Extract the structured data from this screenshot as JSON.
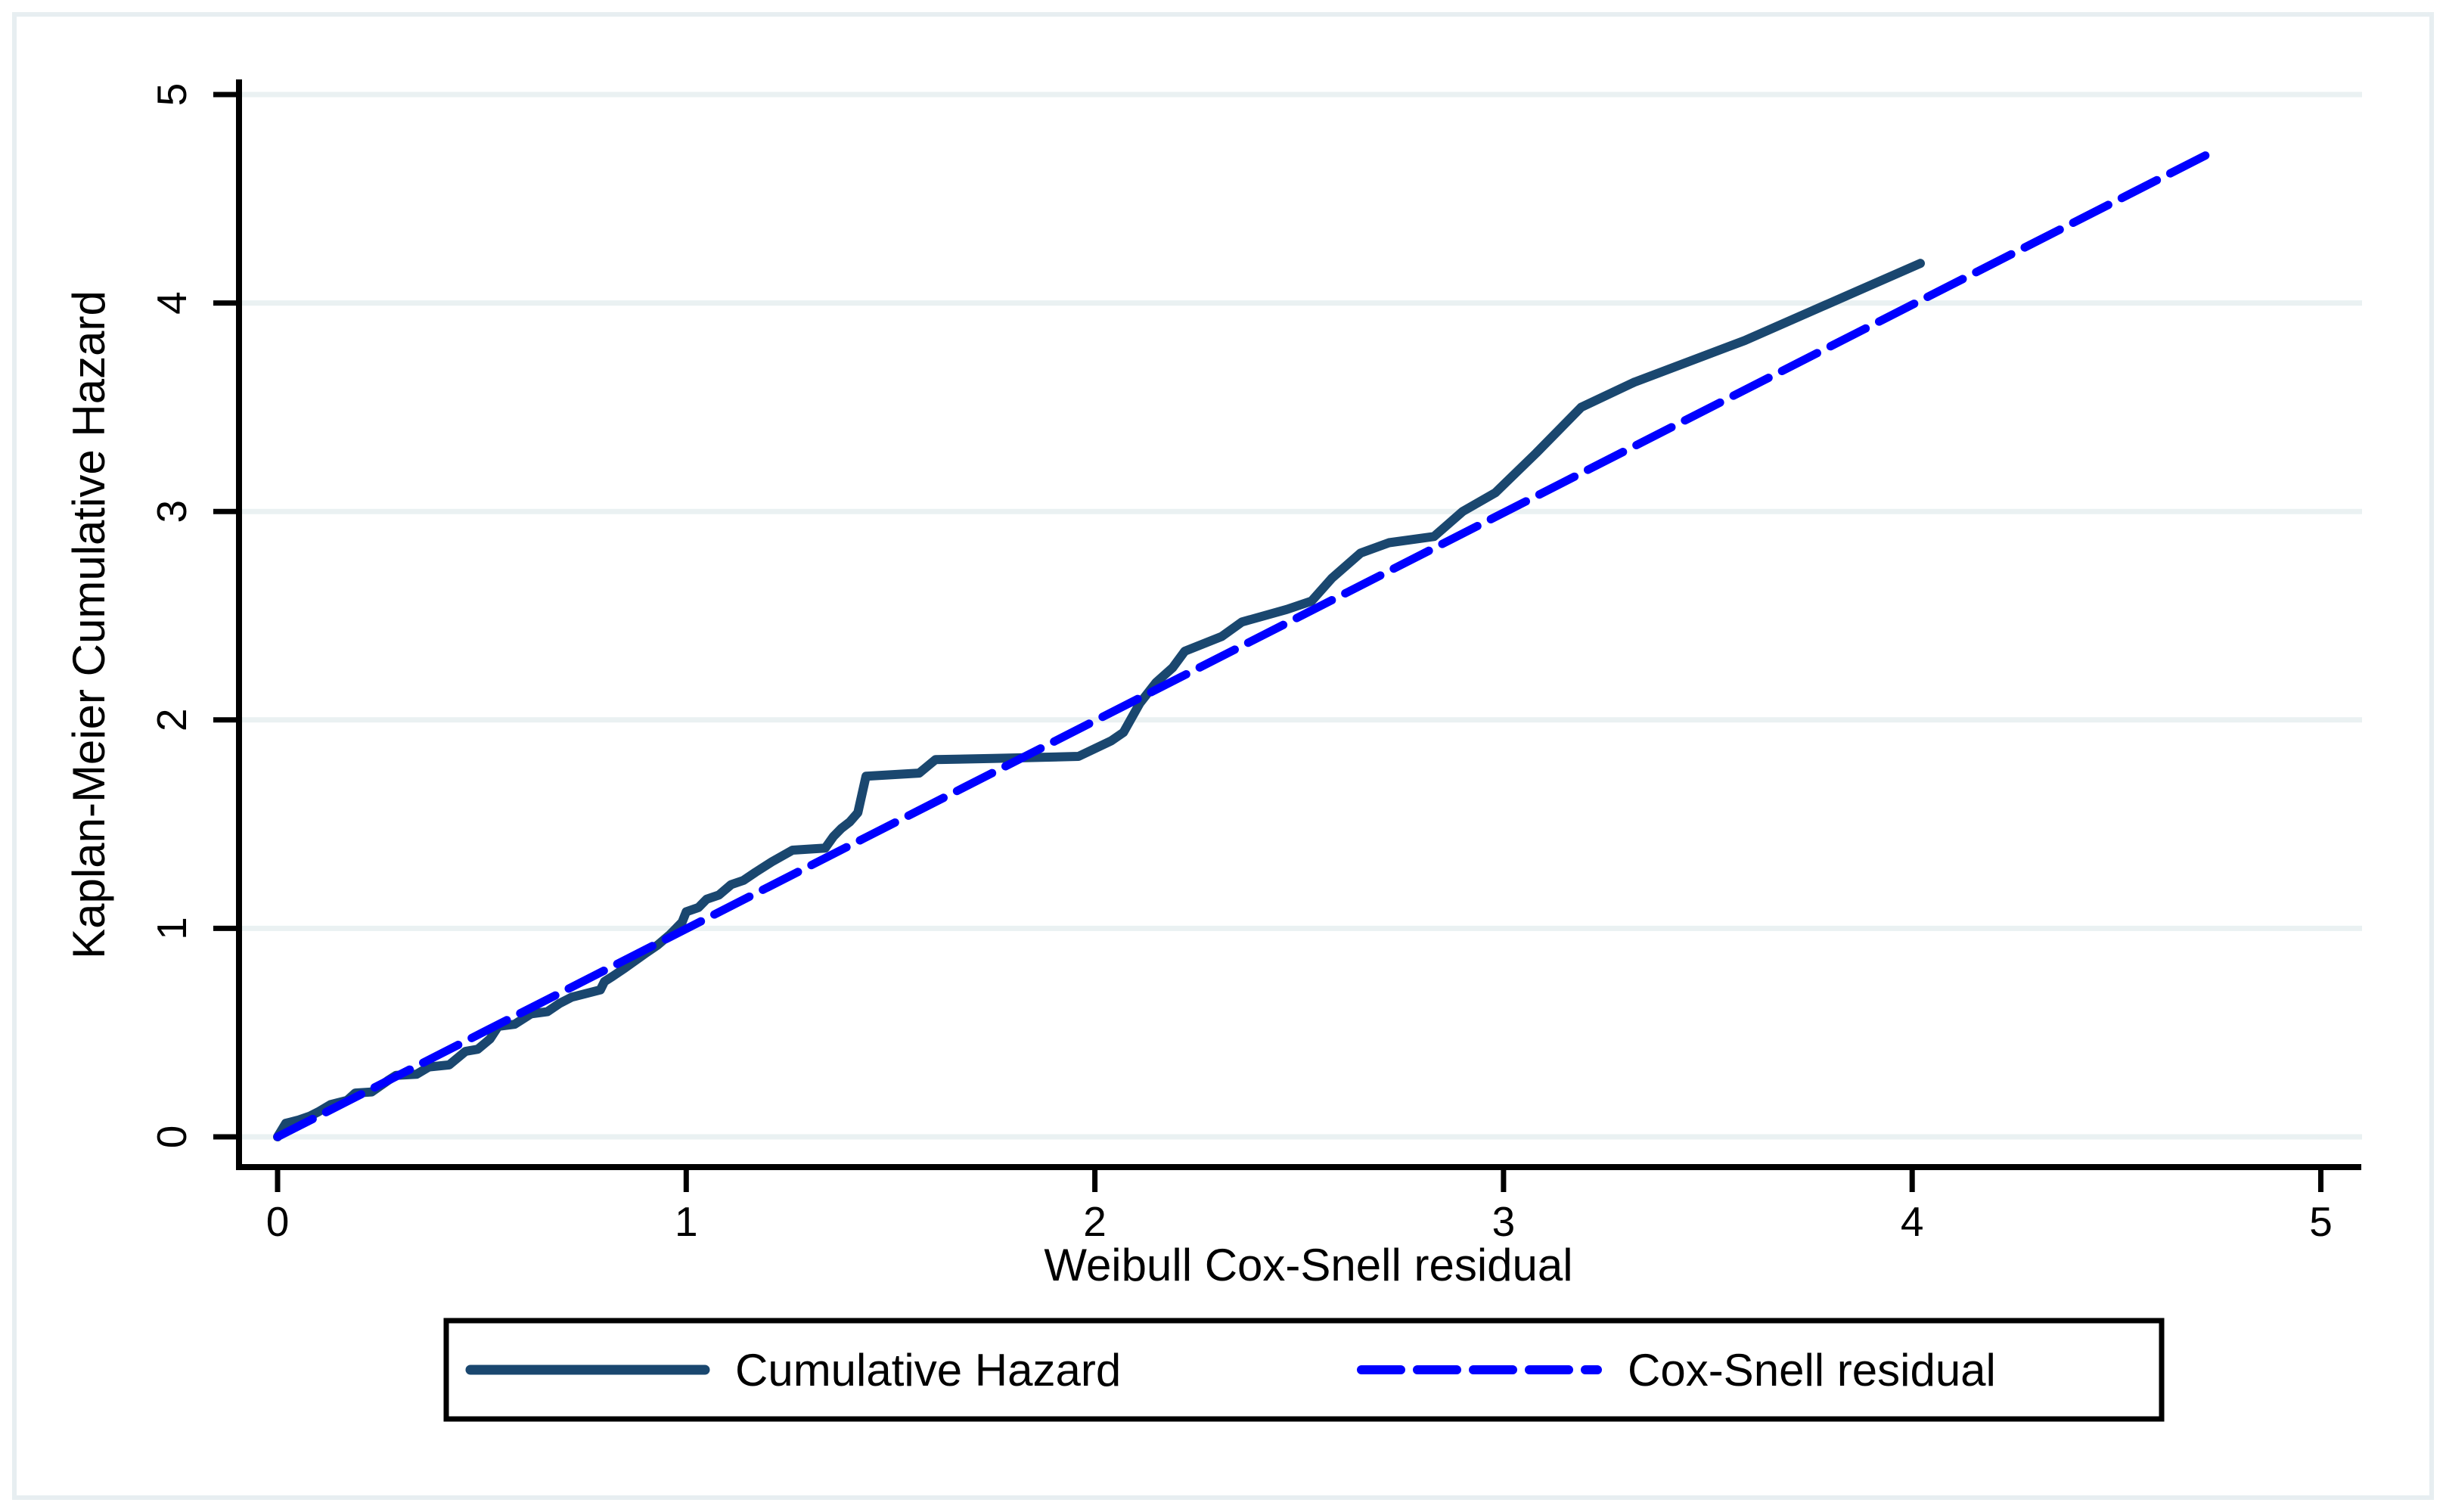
{
  "figure": {
    "background_color": "#ffffff",
    "border_color": "#e7eef1"
  },
  "chart_data": {
    "type": "line",
    "title": "",
    "xlabel": "Weibull Cox-Snell residual",
    "ylabel": "Kaplan-Meier Cumulative Hazard",
    "xlim": [
      0,
      5
    ],
    "ylim": [
      0,
      5
    ],
    "x_ticks": [
      "0",
      "1",
      "2",
      "3",
      "4",
      "5"
    ],
    "y_ticks": [
      "0",
      "1",
      "2",
      "3",
      "4",
      "5"
    ],
    "grid": "horizontal-only",
    "gridline_color": "#eaf1f2",
    "legend_position": "bottom-center",
    "series": [
      {
        "name": "Cumulative Hazard",
        "style": "solid",
        "color": "#1a476f",
        "points": [
          [
            0.0,
            0.0
          ],
          [
            0.02,
            0.065
          ],
          [
            0.05,
            0.08
          ],
          [
            0.08,
            0.1
          ],
          [
            0.1,
            0.12
          ],
          [
            0.13,
            0.155
          ],
          [
            0.17,
            0.175
          ],
          [
            0.19,
            0.21
          ],
          [
            0.23,
            0.215
          ],
          [
            0.27,
            0.27
          ],
          [
            0.29,
            0.295
          ],
          [
            0.34,
            0.3
          ],
          [
            0.37,
            0.335
          ],
          [
            0.42,
            0.345
          ],
          [
            0.46,
            0.41
          ],
          [
            0.49,
            0.42
          ],
          [
            0.52,
            0.47
          ],
          [
            0.54,
            0.53
          ],
          [
            0.58,
            0.54
          ],
          [
            0.62,
            0.59
          ],
          [
            0.66,
            0.6
          ],
          [
            0.69,
            0.64
          ],
          [
            0.72,
            0.67
          ],
          [
            0.79,
            0.705
          ],
          [
            0.8,
            0.745
          ],
          [
            0.82,
            0.77
          ],
          [
            0.85,
            0.81
          ],
          [
            0.9,
            0.88
          ],
          [
            0.93,
            0.92
          ],
          [
            0.96,
            0.97
          ],
          [
            0.99,
            1.03
          ],
          [
            1.0,
            1.08
          ],
          [
            1.03,
            1.1
          ],
          [
            1.05,
            1.14
          ],
          [
            1.08,
            1.16
          ],
          [
            1.11,
            1.21
          ],
          [
            1.14,
            1.23
          ],
          [
            1.17,
            1.27
          ],
          [
            1.21,
            1.32
          ],
          [
            1.26,
            1.375
          ],
          [
            1.34,
            1.385
          ],
          [
            1.36,
            1.44
          ],
          [
            1.38,
            1.48
          ],
          [
            1.4,
            1.51
          ],
          [
            1.42,
            1.555
          ],
          [
            1.44,
            1.73
          ],
          [
            1.57,
            1.745
          ],
          [
            1.61,
            1.81
          ],
          [
            1.75,
            1.815
          ],
          [
            1.96,
            1.825
          ],
          [
            2.04,
            1.9
          ],
          [
            2.07,
            1.94
          ],
          [
            2.11,
            2.08
          ],
          [
            2.15,
            2.18
          ],
          [
            2.19,
            2.25
          ],
          [
            2.22,
            2.33
          ],
          [
            2.31,
            2.4
          ],
          [
            2.36,
            2.47
          ],
          [
            2.47,
            2.53
          ],
          [
            2.53,
            2.57
          ],
          [
            2.58,
            2.68
          ],
          [
            2.65,
            2.8
          ],
          [
            2.72,
            2.85
          ],
          [
            2.83,
            2.88
          ],
          [
            2.9,
            3.0
          ],
          [
            2.98,
            3.09
          ],
          [
            3.08,
            3.28
          ],
          [
            3.19,
            3.5
          ],
          [
            3.32,
            3.62
          ],
          [
            3.59,
            3.82
          ],
          [
            4.02,
            4.19
          ]
        ]
      },
      {
        "name": "Cox-Snell residual",
        "style": "dashed",
        "color": "#0000ff",
        "points": [
          [
            0.0,
            0.0
          ],
          [
            4.74,
            4.73
          ]
        ]
      }
    ]
  },
  "legend": {
    "items": [
      {
        "label": "Cumulative Hazard",
        "swatch": "solid-line"
      },
      {
        "label": "Cox-Snell residual",
        "swatch": "dashed-line"
      }
    ]
  }
}
